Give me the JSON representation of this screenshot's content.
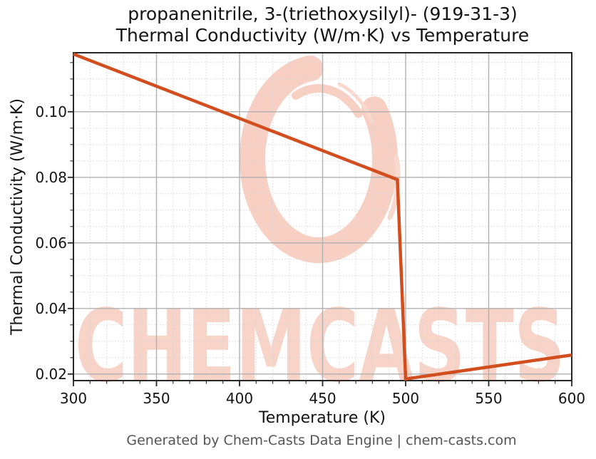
{
  "figure": {
    "title_line1": "propanenitrile, 3-(triethoxysilyl)- (919-31-3)",
    "title_line2": "Thermal Conductivity (W/m·K) vs Temperature",
    "footer": "Generated by Chem-Casts Data Engine | chem-casts.com"
  },
  "watermark": {
    "text": "CHEMCASTS",
    "logo": "brush-swirl-logo",
    "color": "#f8d2c6"
  },
  "chart_data": {
    "type": "line",
    "title": "propanenitrile, 3-(triethoxysilyl)- (919-31-3)",
    "subtitle": "Thermal Conductivity (W/m·K) vs Temperature",
    "xlabel": "Temperature (K)",
    "ylabel": "Thermal Conductivity (W/m·K)",
    "xlim": [
      300,
      600
    ],
    "ylim": [
      0.018,
      0.118
    ],
    "x_ticks": [
      300,
      350,
      400,
      450,
      500,
      550,
      600
    ],
    "x_minor_step": 10,
    "y_ticks": [
      "0.02",
      "0.04",
      "0.06",
      "0.08",
      "0.10"
    ],
    "y_tick_values": [
      0.02,
      0.04,
      0.06,
      0.08,
      0.1
    ],
    "y_minor_step": 0.005,
    "grid": {
      "major": "solid-gray",
      "minor": "dotted-light"
    },
    "legend": "none",
    "series": [
      {
        "name": "Thermal Conductivity (W/m·K)",
        "color": "#d24e1e",
        "points": [
          [
            300,
            0.1176
          ],
          [
            495,
            0.0793
          ],
          [
            500,
            0.0185
          ],
          [
            600,
            0.0258
          ]
        ]
      }
    ]
  },
  "colors": {
    "line": "#d24e1e",
    "watermark": "#f8d2c6",
    "grid_major": "#b0b0b0",
    "grid_minor": "#d6d6d6",
    "spine": "#262626",
    "text": "#141414",
    "footer_text": "#555555",
    "background": "#ffffff"
  }
}
